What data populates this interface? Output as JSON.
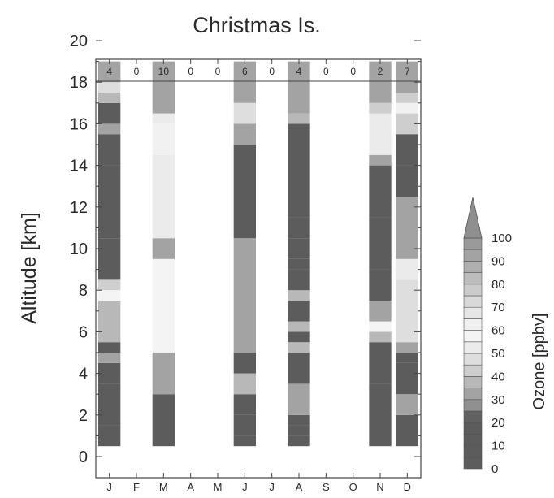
{
  "chart_data": {
    "type": "heatmap",
    "title": "Christmas Is.",
    "ylabel": "Altitude [km]",
    "ylim": [
      0,
      20
    ],
    "yticks": [
      "0",
      "2",
      "4",
      "6",
      "8",
      "10",
      "12",
      "14",
      "16",
      "18",
      "20"
    ],
    "months": [
      "J",
      "F",
      "M",
      "A",
      "M",
      "J",
      "J",
      "A",
      "S",
      "O",
      "N",
      "D"
    ],
    "counts": [
      "4",
      "0",
      "10",
      "0",
      "0",
      "6",
      "0",
      "4",
      "0",
      "0",
      "2",
      "7"
    ],
    "colorbar": {
      "label": "Ozone [ppbv]",
      "ticks": [
        "0",
        "10",
        "20",
        "30",
        "40",
        "50",
        "60",
        "70",
        "80",
        "90",
        "100"
      ],
      "levels": [
        0,
        5,
        10,
        15,
        20,
        25,
        30,
        35,
        40,
        45,
        50,
        55,
        60,
        65,
        70,
        75,
        80,
        85,
        90,
        95,
        100
      ],
      "colors": [
        "#5c5c5c",
        "#5c5c5c",
        "#5c5c5c",
        "#5c5c5c",
        "#616161",
        "#909090",
        "#a3a3a3",
        "#b8b8b8",
        "#cecece",
        "#dedede",
        "#ebebeb",
        "#f4f4f4",
        "#f1f1f1",
        "#e6e6e6",
        "#d9d9d9",
        "#cbcbcb",
        "#bcbcbc",
        "#afafaf",
        "#a3a3a3",
        "#9a9a9a"
      ],
      "overflow_color": "#8f8f8f"
    },
    "columns": [
      {
        "month": "J",
        "segments": [
          {
            "from": 0.5,
            "to": 1.5,
            "ozone": 12
          },
          {
            "from": 1.5,
            "to": 2.5,
            "ozone": 10
          },
          {
            "from": 2.5,
            "to": 3.5,
            "ozone": 14
          },
          {
            "from": 3.5,
            "to": 4.5,
            "ozone": 8
          },
          {
            "from": 4.5,
            "to": 5.0,
            "ozone": 30
          },
          {
            "from": 5.0,
            "to": 5.5,
            "ozone": 12
          },
          {
            "from": 5.5,
            "to": 7.5,
            "ozone": 35
          },
          {
            "from": 7.5,
            "to": 8.0,
            "ozone": 55
          },
          {
            "from": 8.0,
            "to": 8.5,
            "ozone": 40
          },
          {
            "from": 8.5,
            "to": 10.5,
            "ozone": 8
          },
          {
            "from": 10.5,
            "to": 14.0,
            "ozone": 10
          },
          {
            "from": 14.0,
            "to": 15.5,
            "ozone": 10
          },
          {
            "from": 15.5,
            "to": 16.0,
            "ozone": 30
          },
          {
            "from": 16.0,
            "to": 17.0,
            "ozone": 12
          },
          {
            "from": 17.0,
            "to": 17.5,
            "ozone": 35
          },
          {
            "from": 17.5,
            "to": 18.0,
            "ozone": 45
          },
          {
            "from": 18.0,
            "to": 19.0,
            "ozone": 32
          }
        ]
      },
      {
        "month": "M",
        "segments": [
          {
            "from": 0.5,
            "to": 2.5,
            "ozone": 10
          },
          {
            "from": 2.5,
            "to": 3.0,
            "ozone": 14
          },
          {
            "from": 3.0,
            "to": 5.0,
            "ozone": 32
          },
          {
            "from": 5.0,
            "to": 9.5,
            "ozone": 55
          },
          {
            "from": 9.5,
            "to": 10.5,
            "ozone": 30
          },
          {
            "from": 10.5,
            "to": 14.5,
            "ozone": 50
          },
          {
            "from": 14.5,
            "to": 16.0,
            "ozone": 60
          },
          {
            "from": 16.0,
            "to": 16.5,
            "ozone": 50
          },
          {
            "from": 16.5,
            "to": 19.0,
            "ozone": 32
          }
        ]
      },
      {
        "month": "J",
        "segments": [
          {
            "from": 0.5,
            "to": 1.0,
            "ozone": 10
          },
          {
            "from": 1.0,
            "to": 2.0,
            "ozone": 12
          },
          {
            "from": 2.0,
            "to": 3.0,
            "ozone": 10
          },
          {
            "from": 3.0,
            "to": 4.0,
            "ozone": 35
          },
          {
            "from": 4.0,
            "to": 5.0,
            "ozone": 12
          },
          {
            "from": 5.0,
            "to": 10.5,
            "ozone": 32
          },
          {
            "from": 10.5,
            "to": 15.0,
            "ozone": 8
          },
          {
            "from": 15.0,
            "to": 16.0,
            "ozone": 30
          },
          {
            "from": 16.0,
            "to": 17.0,
            "ozone": 45
          },
          {
            "from": 17.0,
            "to": 19.0,
            "ozone": 32
          }
        ]
      },
      {
        "month": "A",
        "segments": [
          {
            "from": 0.5,
            "to": 1.0,
            "ozone": 10
          },
          {
            "from": 1.0,
            "to": 1.5,
            "ozone": 14
          },
          {
            "from": 1.5,
            "to": 2.0,
            "ozone": 10
          },
          {
            "from": 2.0,
            "to": 3.5,
            "ozone": 32
          },
          {
            "from": 3.5,
            "to": 5.0,
            "ozone": 10
          },
          {
            "from": 5.0,
            "to": 5.5,
            "ozone": 35
          },
          {
            "from": 5.5,
            "to": 6.0,
            "ozone": 12
          },
          {
            "from": 6.0,
            "to": 6.5,
            "ozone": 35
          },
          {
            "from": 6.5,
            "to": 7.5,
            "ozone": 10
          },
          {
            "from": 7.5,
            "to": 8.0,
            "ozone": 35
          },
          {
            "from": 8.0,
            "to": 9.0,
            "ozone": 8
          },
          {
            "from": 9.0,
            "to": 9.5,
            "ozone": 12
          },
          {
            "from": 9.5,
            "to": 10.5,
            "ozone": 8
          },
          {
            "from": 10.5,
            "to": 11.5,
            "ozone": 10
          },
          {
            "from": 11.5,
            "to": 16.0,
            "ozone": 8
          },
          {
            "from": 16.0,
            "to": 16.5,
            "ozone": 35
          },
          {
            "from": 16.5,
            "to": 19.0,
            "ozone": 32
          }
        ]
      },
      {
        "month": "N",
        "segments": [
          {
            "from": 0.5,
            "to": 3.5,
            "ozone": 10
          },
          {
            "from": 3.5,
            "to": 5.0,
            "ozone": 8
          },
          {
            "from": 5.0,
            "to": 5.5,
            "ozone": 12
          },
          {
            "from": 5.5,
            "to": 6.0,
            "ozone": 35
          },
          {
            "from": 6.0,
            "to": 6.5,
            "ozone": 55
          },
          {
            "from": 6.5,
            "to": 7.5,
            "ozone": 32
          },
          {
            "from": 7.5,
            "to": 9.0,
            "ozone": 8
          },
          {
            "from": 9.0,
            "to": 10.0,
            "ozone": 10
          },
          {
            "from": 10.0,
            "to": 11.5,
            "ozone": 8
          },
          {
            "from": 11.5,
            "to": 12.5,
            "ozone": 10
          },
          {
            "from": 12.5,
            "to": 14.0,
            "ozone": 8
          },
          {
            "from": 14.0,
            "to": 14.5,
            "ozone": 32
          },
          {
            "from": 14.5,
            "to": 16.5,
            "ozone": 50
          },
          {
            "from": 16.5,
            "to": 17.0,
            "ozone": 40
          },
          {
            "from": 17.0,
            "to": 19.0,
            "ozone": 32
          }
        ]
      },
      {
        "month": "D",
        "segments": [
          {
            "from": 0.5,
            "to": 2.0,
            "ozone": 10
          },
          {
            "from": 2.0,
            "to": 3.0,
            "ozone": 30
          },
          {
            "from": 3.0,
            "to": 4.5,
            "ozone": 12
          },
          {
            "from": 4.5,
            "to": 5.0,
            "ozone": 10
          },
          {
            "from": 5.0,
            "to": 5.5,
            "ozone": 30
          },
          {
            "from": 5.5,
            "to": 6.0,
            "ozone": 45
          },
          {
            "from": 6.0,
            "to": 8.5,
            "ozone": 45
          },
          {
            "from": 8.5,
            "to": 9.5,
            "ozone": 50
          },
          {
            "from": 9.5,
            "to": 12.5,
            "ozone": 32
          },
          {
            "from": 12.5,
            "to": 14.0,
            "ozone": 12
          },
          {
            "from": 14.0,
            "to": 15.0,
            "ozone": 8
          },
          {
            "from": 15.0,
            "to": 15.5,
            "ozone": 12
          },
          {
            "from": 15.5,
            "to": 16.5,
            "ozone": 40
          },
          {
            "from": 16.5,
            "to": 17.0,
            "ozone": 60
          },
          {
            "from": 17.0,
            "to": 17.5,
            "ozone": 40
          },
          {
            "from": 17.5,
            "to": 19.0,
            "ozone": 32
          }
        ]
      }
    ]
  }
}
